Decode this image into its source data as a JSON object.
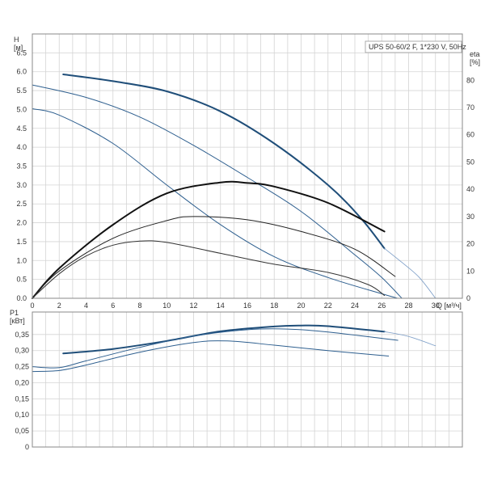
{
  "chart_data": [
    {
      "type": "line",
      "title": "UPS 50-60/2 F, 1*230 V, 50Hz",
      "ylabel_left": [
        "H",
        "[м]"
      ],
      "ylabel_right": [
        "eta",
        "[%]"
      ],
      "xlabel": "Q [м³/ч]",
      "xlim": [
        0,
        32
      ],
      "ylim": [
        0,
        7
      ],
      "eta_lim": [
        0,
        97
      ],
      "x_ticks": [
        0,
        2,
        4,
        6,
        8,
        10,
        12,
        14,
        16,
        18,
        20,
        22,
        24,
        26,
        28,
        30
      ],
      "y_ticks": [
        "0.0",
        "0.5",
        "1.0",
        "1.5",
        "2.0",
        "2.5",
        "3.0",
        "3.5",
        "4.0",
        "4.5",
        "5.0",
        "5.5",
        "6.0",
        "6.5"
      ],
      "eta_ticks": [
        0,
        10,
        20,
        30,
        40,
        50,
        60,
        70,
        80
      ],
      "grid": true,
      "series": [
        {
          "axis": "H",
          "color": "#1f4e79",
          "width": 2,
          "points": [
            [
              2.3,
              5.93
            ],
            [
              6,
              5.75
            ],
            [
              10,
              5.48
            ],
            [
              14,
              4.95
            ],
            [
              18,
              4.1
            ],
            [
              22,
              3.0
            ],
            [
              24.5,
              2.1
            ],
            [
              26.2,
              1.32
            ]
          ]
        },
        {
          "axis": "H",
          "color": "#7a9cc6",
          "width": 0.8,
          "points": [
            [
              26.2,
              1.32
            ],
            [
              27.5,
              0.95
            ],
            [
              28.8,
              0.55
            ],
            [
              30,
              0
            ]
          ]
        },
        {
          "axis": "H",
          "color": "#2e5f8f",
          "width": 1,
          "points": [
            [
              0,
              5.65
            ],
            [
              4,
              5.32
            ],
            [
              8,
              4.8
            ],
            [
              12,
              4.05
            ],
            [
              16,
              3.2
            ],
            [
              20,
              2.3
            ],
            [
              24,
              1.15
            ],
            [
              26,
              0.55
            ],
            [
              27.5,
              0
            ]
          ]
        },
        {
          "axis": "H",
          "color": "#2e5f8f",
          "width": 1,
          "points": [
            [
              0,
              5.02
            ],
            [
              2,
              4.85
            ],
            [
              6,
              4.1
            ],
            [
              10,
              3.0
            ],
            [
              14,
              1.95
            ],
            [
              18,
              1.1
            ],
            [
              22,
              0.55
            ],
            [
              26,
              0.12
            ],
            [
              27.2,
              0
            ]
          ]
        },
        {
          "axis": "eta",
          "color": "#111111",
          "width": 2,
          "points": [
            [
              0,
              0
            ],
            [
              2,
              11
            ],
            [
              6,
              27
            ],
            [
              10,
              38.5
            ],
            [
              14,
              42.5
            ],
            [
              16,
              42.3
            ],
            [
              18,
              41
            ],
            [
              22,
              35
            ],
            [
              26.2,
              24.5
            ]
          ]
        },
        {
          "axis": "eta",
          "color": "#222222",
          "width": 1,
          "points": [
            [
              0,
              0
            ],
            [
              2,
              10
            ],
            [
              6,
              22
            ],
            [
              10,
              28.5
            ],
            [
              12,
              30
            ],
            [
              16,
              28.8
            ],
            [
              20,
              24.5
            ],
            [
              24,
              18
            ],
            [
              27,
              8
            ]
          ]
        },
        {
          "axis": "eta",
          "color": "#333333",
          "width": 1,
          "points": [
            [
              0,
              0
            ],
            [
              2,
              9
            ],
            [
              4,
              15.5
            ],
            [
              6,
              19.5
            ],
            [
              8,
              21
            ],
            [
              10,
              20.5
            ],
            [
              14,
              16.5
            ],
            [
              18,
              12.5
            ],
            [
              22,
              9.5
            ],
            [
              25,
              5
            ],
            [
              26.2,
              1
            ]
          ]
        }
      ]
    },
    {
      "type": "line",
      "ylabel": [
        "P1",
        "[кВт]"
      ],
      "xlim": [
        0,
        32
      ],
      "ylim": [
        0,
        0.42
      ],
      "y_ticks": [
        "0",
        "0,05",
        "0,10",
        "0,15",
        "0,20",
        "0,25",
        "0,30",
        "0,35"
      ],
      "grid": true,
      "series": [
        {
          "color": "#1f4e79",
          "width": 2,
          "points": [
            [
              2.3,
              0.291
            ],
            [
              6,
              0.305
            ],
            [
              10,
              0.33
            ],
            [
              14,
              0.36
            ],
            [
              18,
              0.375
            ],
            [
              20,
              0.378
            ],
            [
              22,
              0.376
            ],
            [
              26.2,
              0.359
            ]
          ]
        },
        {
          "color": "#7a9cc6",
          "width": 0.8,
          "points": [
            [
              26.2,
              0.359
            ],
            [
              28,
              0.344
            ],
            [
              30,
              0.315
            ]
          ]
        },
        {
          "color": "#2e5f8f",
          "width": 1,
          "points": [
            [
              0,
              0.25
            ],
            [
              2,
              0.247
            ],
            [
              4,
              0.268
            ],
            [
              8,
              0.31
            ],
            [
              12,
              0.345
            ],
            [
              16,
              0.365
            ],
            [
              19,
              0.367
            ],
            [
              22,
              0.358
            ],
            [
              26,
              0.338
            ],
            [
              27.2,
              0.332
            ]
          ]
        },
        {
          "color": "#2e5f8f",
          "width": 1,
          "points": [
            [
              0,
              0.235
            ],
            [
              2,
              0.238
            ],
            [
              4,
              0.255
            ],
            [
              8,
              0.295
            ],
            [
              12,
              0.325
            ],
            [
              14.5,
              0.33
            ],
            [
              18,
              0.317
            ],
            [
              22,
              0.3
            ],
            [
              26,
              0.285
            ],
            [
              26.5,
              0.283
            ]
          ]
        }
      ]
    }
  ]
}
